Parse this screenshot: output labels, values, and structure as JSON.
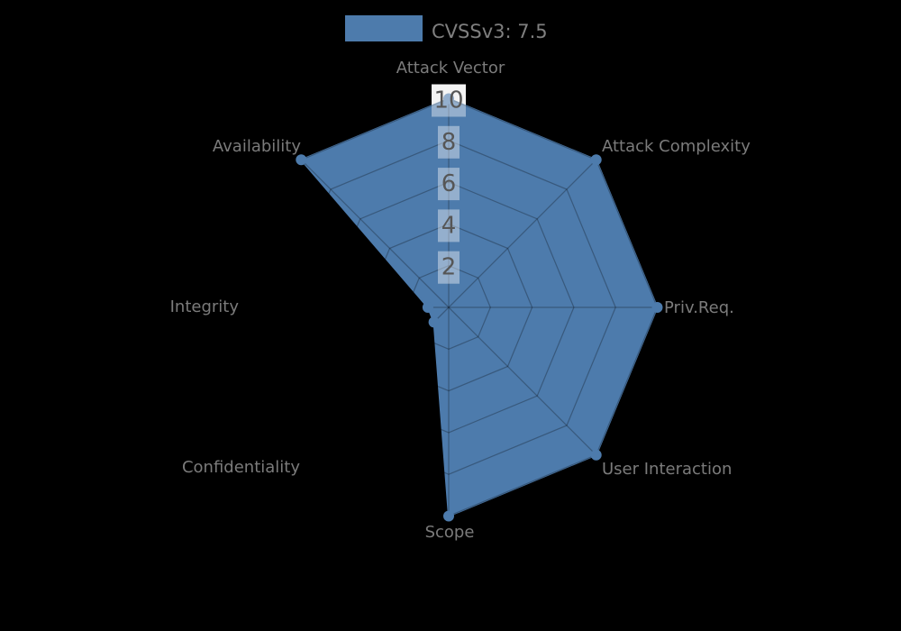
{
  "page": {
    "background": "#000000"
  },
  "chart_data": {
    "type": "radar",
    "title": "CVSSv3: 7.5",
    "categories": [
      "Attack Vector",
      "Attack Complexity",
      "Priv.Req.",
      "User Interaction",
      "Scope",
      "Confidentiality",
      "Integrity",
      "Availability"
    ],
    "series": [
      {
        "name": "CVSSv3: 7.5",
        "values": [
          10,
          10,
          10,
          10,
          10,
          1,
          1,
          10
        ],
        "color": "#4d7bac",
        "fill_opacity": 1.0,
        "marker_radius": 6
      }
    ],
    "axis": {
      "min": 0,
      "max": 10,
      "ticks": [
        2,
        4,
        6,
        8,
        10
      ],
      "tick_labels": [
        "2",
        "4",
        "6",
        "8",
        "10"
      ]
    },
    "grid": {
      "shape": "polygon-web",
      "spokes": 8,
      "line_color": "rgba(0,0,0,0.27)",
      "tick_backdrop_color": "#ffffff",
      "visible_outside_fill": false
    },
    "legend": {
      "position": "top-center",
      "label": "CVSSv3: 7.5",
      "swatch_color": "#4d7bac"
    },
    "background": "#000000",
    "text_colors": {
      "axis_labels": "#7b7b7b",
      "tick_labels": "#565656",
      "legend": "#7f7f7f"
    }
  }
}
